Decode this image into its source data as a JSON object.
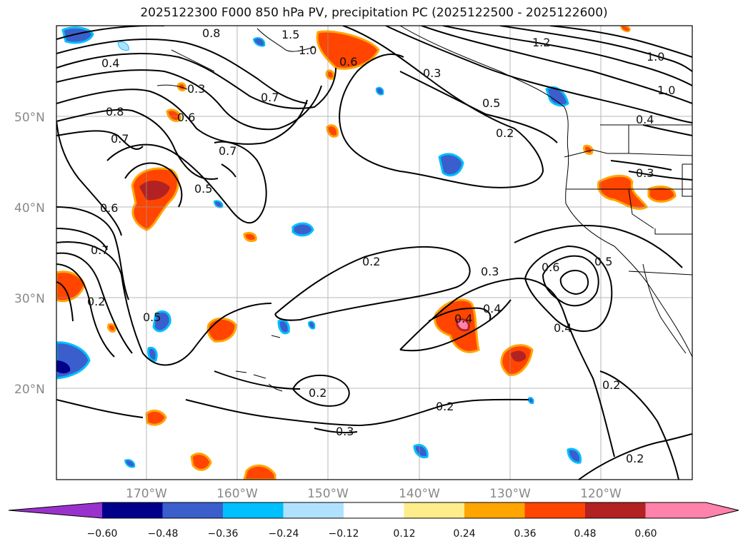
{
  "title": "2025122300 F000 850 hPa PV, precipitation PC (2025122500 - 2025122600)",
  "map": {
    "lat_labels": [
      "50°N",
      "40°N",
      "30°N",
      "20°N"
    ],
    "lon_labels": [
      "170°W",
      "160°W",
      "150°W",
      "140°W",
      "130°W",
      "120°W"
    ],
    "contour_labels": [
      "0.4",
      "0.8",
      "0.7",
      "0.6",
      "0.8",
      "0.7",
      "0.2",
      "0.5",
      "0.3",
      "0.6",
      "0.5",
      "0.7",
      "0.7",
      "1.5",
      "1.0",
      "0.6",
      "0.3",
      "0.5",
      "0.2",
      "1.2",
      "1.0",
      "1.0",
      "0.4",
      "0.3",
      "0.2",
      "0.3",
      "0.4",
      "0.4",
      "0.6",
      "0.5",
      "0.4",
      "0.2",
      "0.2",
      "0.2",
      "0.3",
      "0.2"
    ]
  },
  "colorbar": {
    "ticks": [
      "−0.60",
      "−0.48",
      "−0.36",
      "−0.24",
      "−0.12",
      "0.12",
      "0.24",
      "0.36",
      "0.48",
      "0.60"
    ],
    "colors": [
      "#9932cc",
      "#00008b",
      "#3a5fcd",
      "#00bfff",
      "#b0e2ff",
      "#ffffff",
      "#ffec8b",
      "#ffa500",
      "#ff4500",
      "#b22222",
      "#ff82ab",
      "#ff82ab"
    ]
  },
  "palette": {
    "negative": [
      "#b0e2ff",
      "#00bfff",
      "#3a5fcd",
      "#00008b"
    ],
    "positive": [
      "#ffec8b",
      "#ffa500",
      "#ff4500",
      "#b22222",
      "#ff82ab"
    ]
  }
}
